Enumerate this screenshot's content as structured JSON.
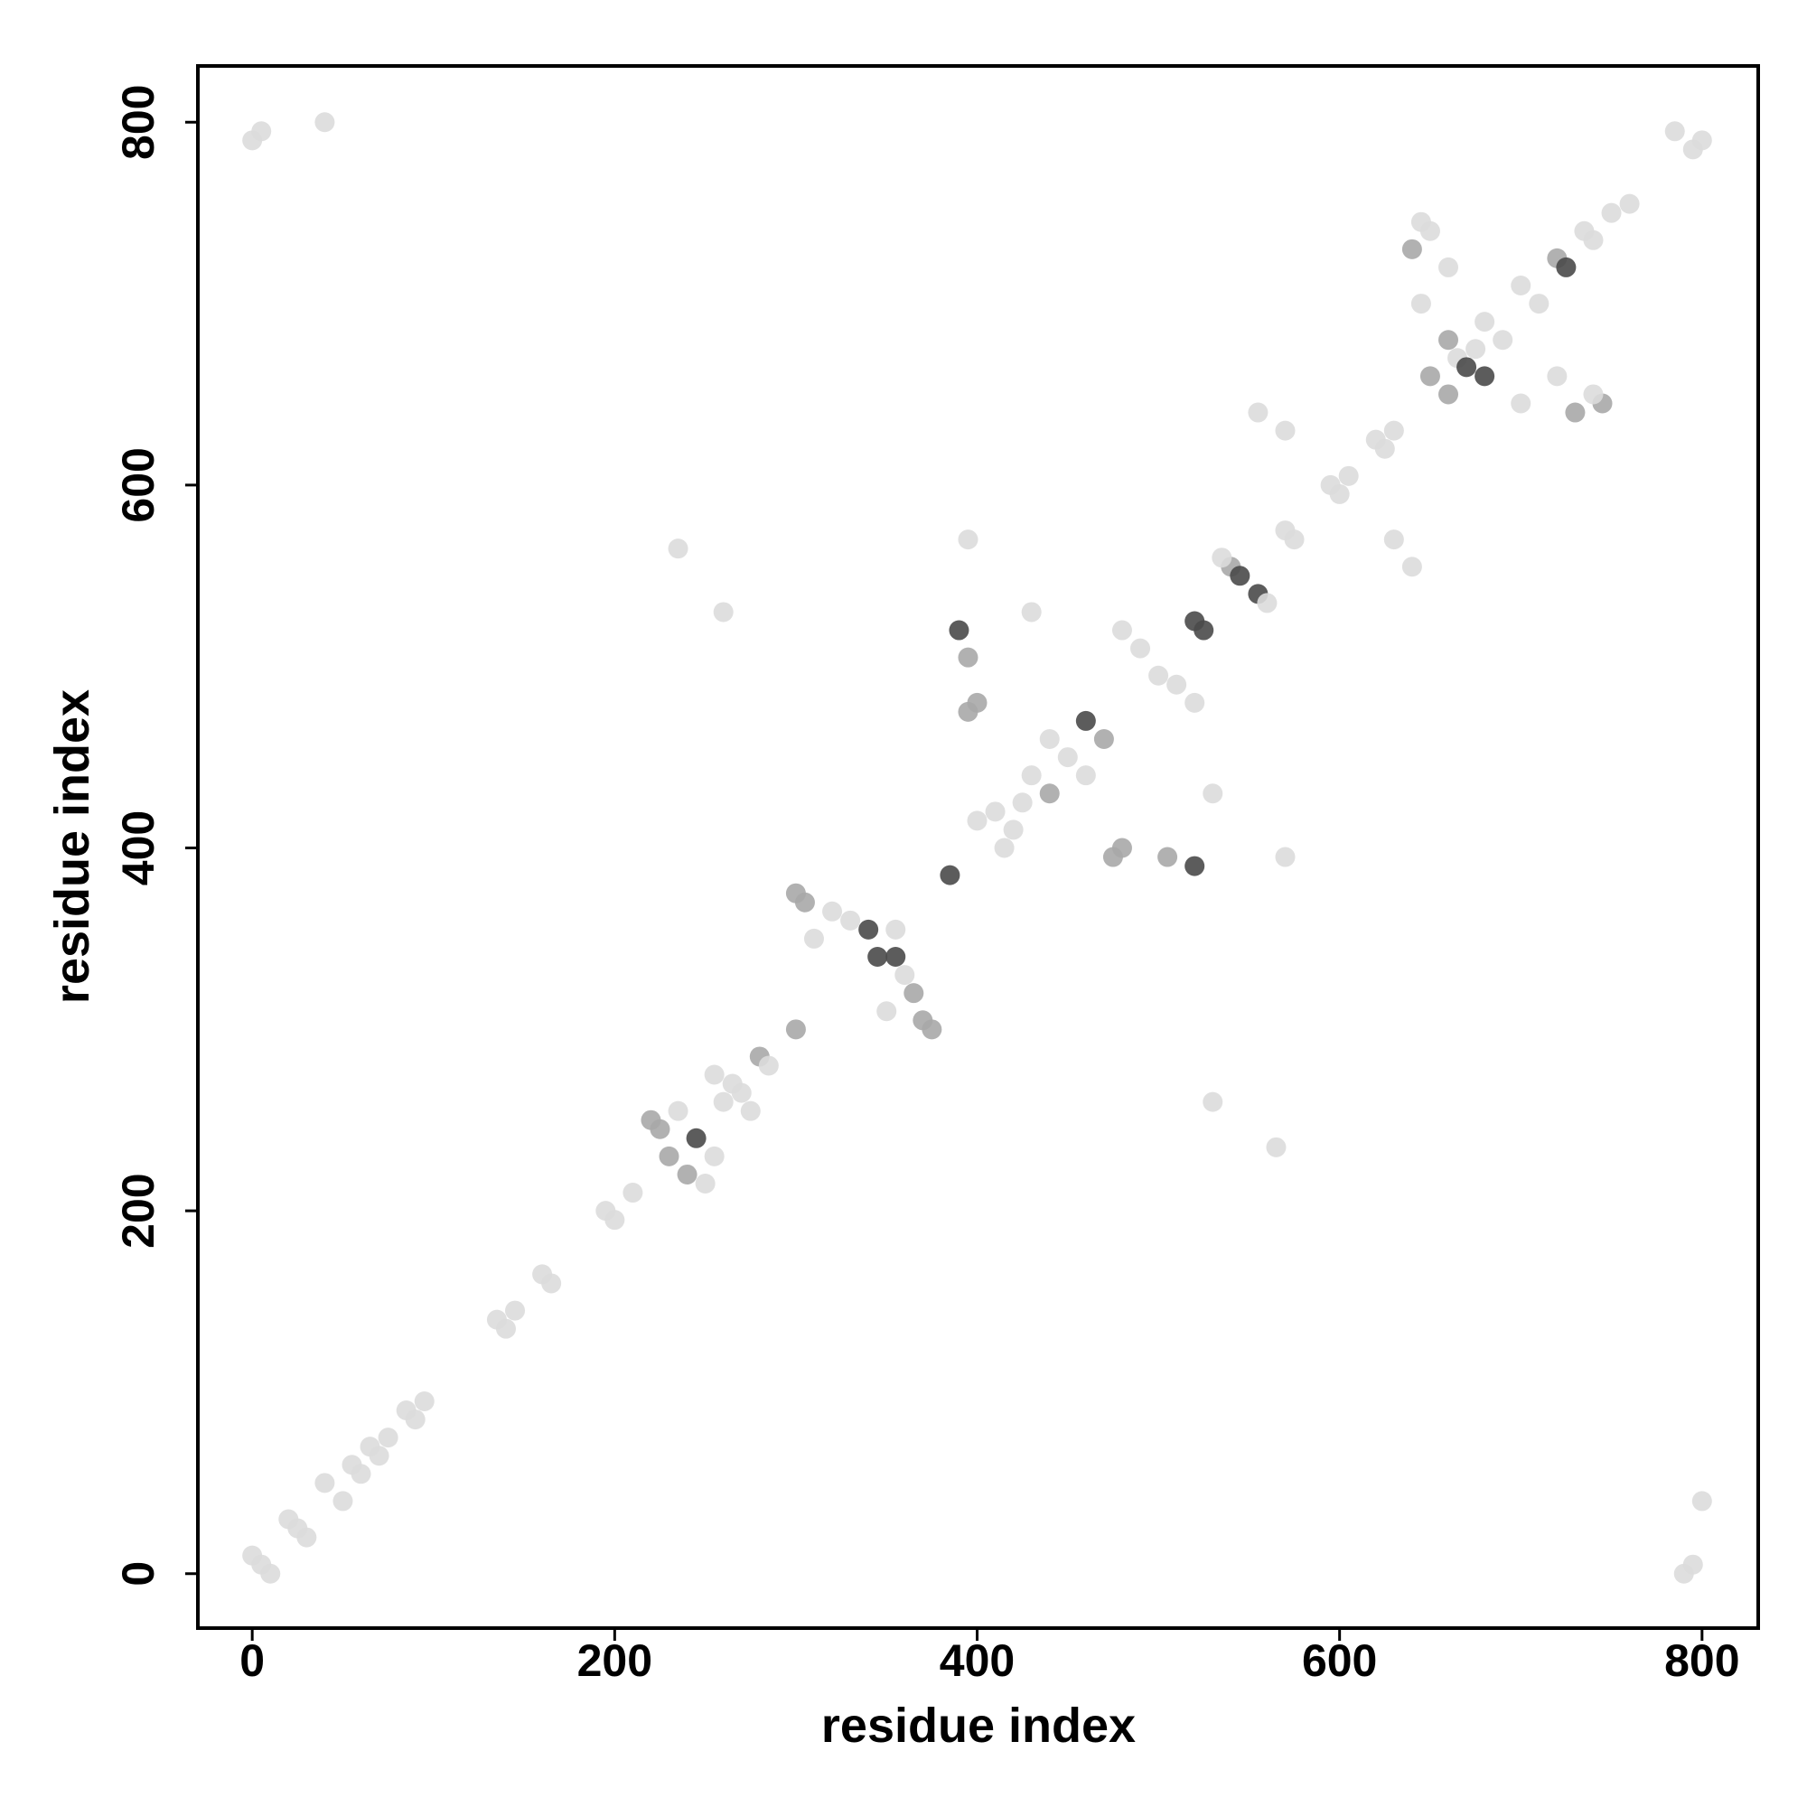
{
  "chart_data": {
    "type": "scatter",
    "xlabel": "residue index",
    "ylabel": "residue index",
    "xlim": [
      -30,
      831
    ],
    "ylim": [
      -30,
      831
    ],
    "xticks": [
      0,
      200,
      400,
      600,
      800
    ],
    "yticks": [
      0,
      200,
      400,
      600,
      800
    ],
    "x": [
      0,
      5,
      10,
      20,
      30,
      25,
      40,
      50,
      55,
      60,
      65,
      70,
      75,
      85,
      90,
      95,
      135,
      140,
      145,
      160,
      165,
      195,
      200,
      210,
      0,
      5,
      40,
      790,
      795,
      800,
      785,
      795,
      800,
      225,
      230,
      240,
      245,
      250,
      220,
      235,
      255,
      260,
      265,
      270,
      280,
      285,
      275,
      255,
      235,
      565,
      260,
      530,
      300,
      305,
      370,
      310,
      350,
      340,
      355,
      345,
      330,
      360,
      365,
      320,
      375,
      300,
      355,
      385,
      390,
      520,
      395,
      505,
      400,
      480,
      395,
      570,
      410,
      420,
      430,
      440,
      450,
      415,
      400,
      440,
      460,
      425,
      430,
      530,
      460,
      470,
      480,
      520,
      490,
      510,
      500,
      475,
      395,
      520,
      525,
      540,
      555,
      545,
      560,
      535,
      570,
      575,
      555,
      640,
      570,
      630,
      595,
      600,
      605,
      620,
      625,
      630,
      640,
      730,
      645,
      700,
      650,
      660,
      665,
      670,
      680,
      690,
      700,
      710,
      720,
      725,
      735,
      740,
      745,
      645,
      650,
      740,
      660,
      720,
      675,
      680,
      660,
      750,
      760
    ],
    "y": [
      10,
      5,
      0,
      30,
      20,
      25,
      50,
      40,
      60,
      55,
      70,
      65,
      75,
      90,
      85,
      95,
      140,
      135,
      145,
      165,
      160,
      200,
      195,
      210,
      790,
      795,
      800,
      0,
      5,
      40,
      795,
      785,
      790,
      245,
      230,
      220,
      240,
      215,
      250,
      255,
      230,
      260,
      270,
      265,
      285,
      280,
      255,
      275,
      565,
      235,
      530,
      260,
      300,
      370,
      305,
      350,
      310,
      355,
      340,
      340,
      360,
      330,
      320,
      365,
      300,
      375,
      355,
      385,
      520,
      390,
      505,
      395,
      480,
      400,
      570,
      395,
      420,
      410,
      440,
      430,
      450,
      400,
      415,
      460,
      440,
      425,
      530,
      430,
      470,
      460,
      520,
      480,
      510,
      490,
      495,
      395,
      475,
      525,
      520,
      555,
      540,
      550,
      535,
      560,
      575,
      570,
      640,
      555,
      630,
      570,
      600,
      595,
      605,
      625,
      620,
      630,
      730,
      640,
      700,
      645,
      660,
      650,
      670,
      665,
      690,
      680,
      710,
      700,
      725,
      720,
      740,
      735,
      645,
      745,
      740,
      650,
      720,
      660,
      675,
      660,
      680,
      750,
      755
    ],
    "colors": [
      "#dcdcdc",
      "#dcdcdc",
      "#dcdcdc",
      "#dcdcdc",
      "#dcdcdc",
      "#dcdcdc",
      "#dcdcdc",
      "#dcdcdc",
      "#dcdcdc",
      "#dcdcdc",
      "#dcdcdc",
      "#dcdcdc",
      "#dcdcdc",
      "#dcdcdc",
      "#dcdcdc",
      "#dcdcdc",
      "#dcdcdc",
      "#dcdcdc",
      "#dcdcdc",
      "#dcdcdc",
      "#dcdcdc",
      "#dcdcdc",
      "#dcdcdc",
      "#dcdcdc",
      "#dcdcdc",
      "#dcdcdc",
      "#dcdcdc",
      "#dcdcdc",
      "#dcdcdc",
      "#dcdcdc",
      "#dcdcdc",
      "#dcdcdc",
      "#dcdcdc",
      "#a8a8a8",
      "#a8a8a8",
      "#a8a8a8",
      "#4a4a4a",
      "#dcdcdc",
      "#a8a8a8",
      "#dcdcdc",
      "#dcdcdc",
      "#dcdcdc",
      "#dcdcdc",
      "#dcdcdc",
      "#a8a8a8",
      "#dcdcdc",
      "#dcdcdc",
      "#dcdcdc",
      "#dcdcdc",
      "#dcdcdc",
      "#dcdcdc",
      "#dcdcdc",
      "#a8a8a8",
      "#a8a8a8",
      "#a8a8a8",
      "#dcdcdc",
      "#dcdcdc",
      "#4a4a4a",
      "#4a4a4a",
      "#4a4a4a",
      "#dcdcdc",
      "#dcdcdc",
      "#a8a8a8",
      "#dcdcdc",
      "#a8a8a8",
      "#a8a8a8",
      "#dcdcdc",
      "#4a4a4a",
      "#4a4a4a",
      "#4a4a4a",
      "#a8a8a8",
      "#a8a8a8",
      "#a8a8a8",
      "#a8a8a8",
      "#dcdcdc",
      "#dcdcdc",
      "#dcdcdc",
      "#dcdcdc",
      "#dcdcdc",
      "#a8a8a8",
      "#dcdcdc",
      "#dcdcdc",
      "#dcdcdc",
      "#dcdcdc",
      "#dcdcdc",
      "#dcdcdc",
      "#dcdcdc",
      "#dcdcdc",
      "#4a4a4a",
      "#a8a8a8",
      "#dcdcdc",
      "#dcdcdc",
      "#dcdcdc",
      "#dcdcdc",
      "#dcdcdc",
      "#a8a8a8",
      "#a8a8a8",
      "#4a4a4a",
      "#4a4a4a",
      "#a8a8a8",
      "#4a4a4a",
      "#4a4a4a",
      "#dcdcdc",
      "#dcdcdc",
      "#dcdcdc",
      "#dcdcdc",
      "#dcdcdc",
      "#dcdcdc",
      "#dcdcdc",
      "#dcdcdc",
      "#dcdcdc",
      "#dcdcdc",
      "#dcdcdc",
      "#dcdcdc",
      "#dcdcdc",
      "#dcdcdc",
      "#a8a8a8",
      "#a8a8a8",
      "#dcdcdc",
      "#dcdcdc",
      "#a8a8a8",
      "#a8a8a8",
      "#dcdcdc",
      "#4a4a4a",
      "#dcdcdc",
      "#dcdcdc",
      "#dcdcdc",
      "#dcdcdc",
      "#a8a8a8",
      "#4a4a4a",
      "#dcdcdc",
      "#dcdcdc",
      "#a8a8a8",
      "#dcdcdc",
      "#dcdcdc",
      "#dcdcdc",
      "#dcdcdc",
      "#dcdcdc",
      "#dcdcdc",
      "#4a4a4a",
      "#a8a8a8",
      "#dcdcdc",
      "#dcdcdc"
    ]
  }
}
